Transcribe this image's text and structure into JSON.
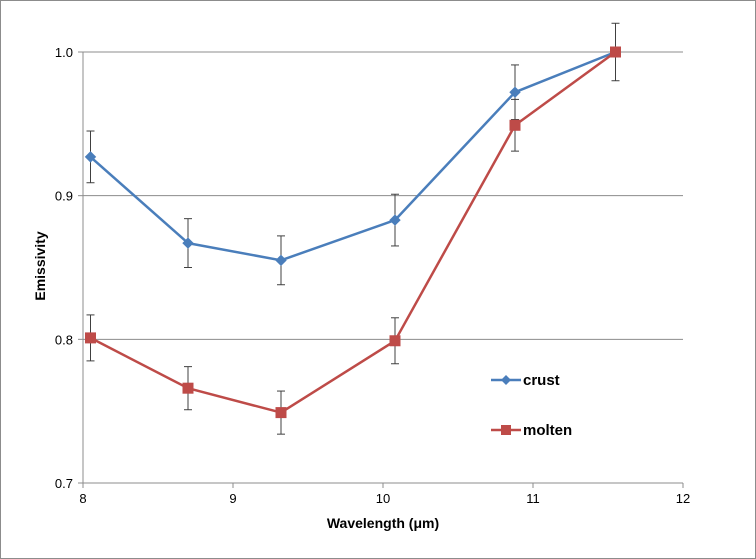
{
  "chart_data": {
    "type": "line",
    "xlabel": "Wavelength (μm)",
    "ylabel": "Emissivity",
    "xlim": [
      8,
      12
    ],
    "ylim": [
      0.7,
      1.0
    ],
    "x_ticks": [
      "8",
      "9",
      "10",
      "11",
      "12"
    ],
    "y_ticks": [
      "0.7",
      "0.8",
      "0.9",
      "1.0"
    ],
    "grid": "horizontal",
    "legend_position": "right",
    "series": [
      {
        "name": "crust",
        "color": "#4a7ebb",
        "marker": "diamond",
        "x": [
          8.05,
          8.7,
          9.32,
          10.08,
          10.88,
          11.55
        ],
        "y": [
          0.927,
          0.867,
          0.855,
          0.883,
          0.972,
          1.0
        ],
        "error": [
          0.018,
          0.017,
          0.017,
          0.018,
          0.019,
          0.0
        ]
      },
      {
        "name": "molten",
        "color": "#be4b48",
        "marker": "square",
        "x": [
          8.05,
          8.7,
          9.32,
          10.08,
          10.88,
          11.55
        ],
        "y": [
          0.801,
          0.766,
          0.749,
          0.799,
          0.949,
          1.0
        ],
        "error": [
          0.016,
          0.015,
          0.015,
          0.016,
          0.018,
          0.02
        ]
      }
    ]
  }
}
